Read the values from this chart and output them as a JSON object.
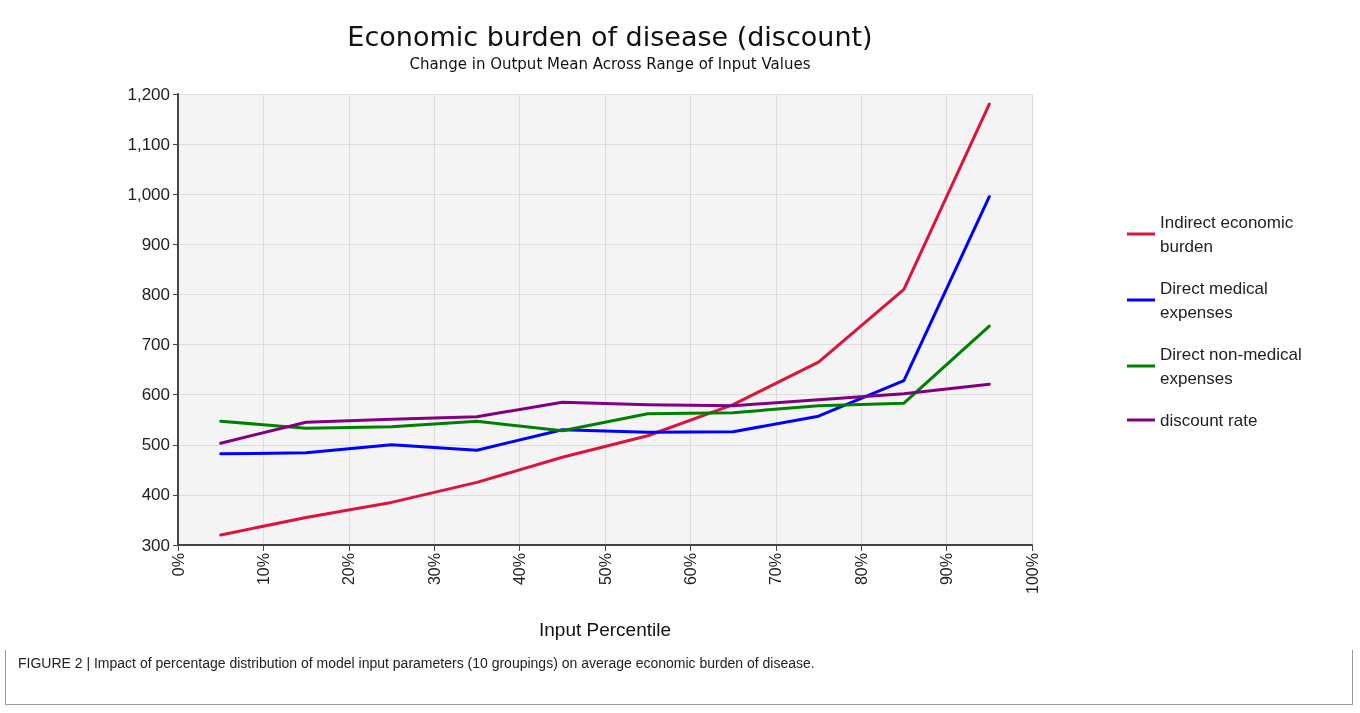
{
  "chart_data": {
    "type": "line",
    "title": "Economic burden of disease (discount)",
    "subtitle": "Change in Output Mean Across Range of Input Values",
    "xlabel": "Input Percentile",
    "x": [
      5,
      15,
      25,
      35,
      45,
      55,
      65,
      75,
      85,
      95
    ],
    "series": [
      {
        "name": "Indirect economic burden",
        "color": "#dc143c",
        "values": [
          320,
          355,
          385,
          425,
          475,
          518,
          580,
          665,
          810,
          1180
        ]
      },
      {
        "name": "Direct medical expenses",
        "color": "#0000ff",
        "values": [
          482,
          484,
          500,
          489,
          530,
          525,
          526,
          557,
          628,
          995
        ]
      },
      {
        "name": "Direct non-medical expenses",
        "color": "#008000",
        "values": [
          547,
          533,
          536,
          547,
          528,
          562,
          564,
          578,
          583,
          737
        ]
      },
      {
        "name": "discount rate",
        "color": "#800080",
        "values": [
          503,
          545,
          551,
          556,
          585,
          580,
          578,
          590,
          602,
          621
        ]
      }
    ],
    "xlim": [
      0,
      100
    ],
    "xticks": [
      {
        "value": 0,
        "label": "0%"
      },
      {
        "value": 10,
        "label": "10%"
      },
      {
        "value": 20,
        "label": "20%"
      },
      {
        "value": 30,
        "label": "30%"
      },
      {
        "value": 40,
        "label": "40%"
      },
      {
        "value": 50,
        "label": "50%"
      },
      {
        "value": 60,
        "label": "60%"
      },
      {
        "value": 70,
        "label": "70%"
      },
      {
        "value": 80,
        "label": "80%"
      },
      {
        "value": 90,
        "label": "90%"
      },
      {
        "value": 100,
        "label": "100%"
      }
    ],
    "ylim": [
      300,
      1200
    ],
    "yticks": [
      300,
      400,
      500,
      600,
      700,
      800,
      900,
      {
        "value": 1000,
        "label": "1,000"
      },
      {
        "value": 1100,
        "label": "1,100"
      },
      {
        "value": 1200,
        "label": "1,200"
      }
    ],
    "grid": true,
    "legend": "right",
    "marker": "none",
    "line_style": "solid",
    "annotations": [
      "FIGURE 2 | Impact of percentage distribution of model input parameters (10 groupings) on average economic burden of disease."
    ]
  }
}
